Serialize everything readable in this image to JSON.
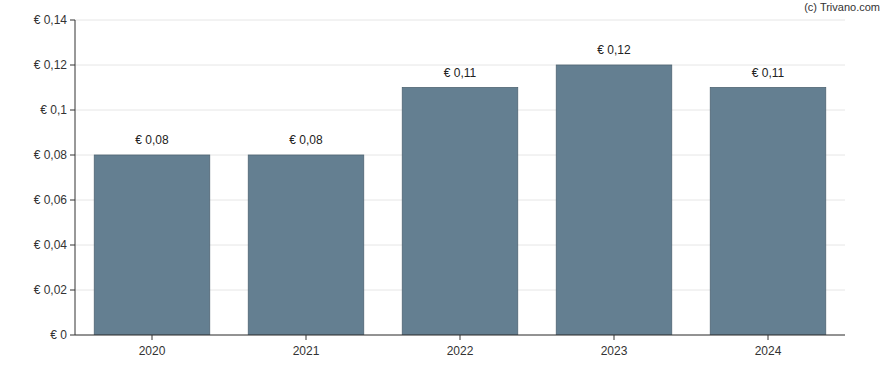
{
  "chart_data": {
    "type": "bar",
    "categories": [
      "2020",
      "2021",
      "2022",
      "2023",
      "2024"
    ],
    "values": [
      0.08,
      0.08,
      0.11,
      0.12,
      0.11
    ],
    "value_labels": [
      "€ 0,08",
      "€ 0,08",
      "€ 0,11",
      "€ 0,12",
      "€ 0,11"
    ],
    "color": "#647f91",
    "ylim": [
      0,
      0.14
    ],
    "yticks": [
      {
        "value": 0,
        "label": "€ 0"
      },
      {
        "value": 0.02,
        "label": "€ 0,02"
      },
      {
        "value": 0.04,
        "label": "€ 0,04"
      },
      {
        "value": 0.06,
        "label": "€ 0,06"
      },
      {
        "value": 0.08,
        "label": "€ 0,08"
      },
      {
        "value": 0.1,
        "label": "€ 0,1"
      },
      {
        "value": 0.12,
        "label": "€ 0,12"
      },
      {
        "value": 0.14,
        "label": "€ 0,14"
      }
    ],
    "grid": true,
    "data_labels": true,
    "annotations": [
      "(c) Trivano.com"
    ]
  }
}
